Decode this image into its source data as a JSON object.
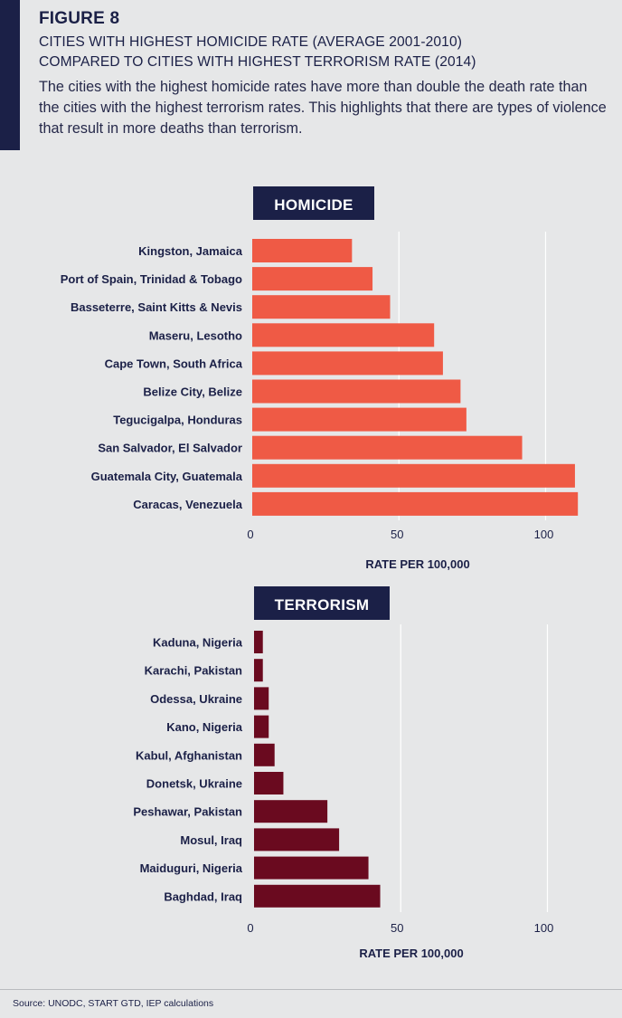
{
  "figure_label": "FIGURE 8",
  "title_line1": "CITIES WITH HIGHEST HOMICIDE RATE (AVERAGE 2001-2010)",
  "title_line2": "COMPARED TO CITIES WITH HIGHEST TERRORISM RATE (2014)",
  "description": "The cities with the highest homicide rates have more than double the death rate than the cities with the highest terrorism rates. This highlights that there are types of violence that result in more deaths than terrorism.",
  "source": "Source: UNODC, START GTD, IEP calculations",
  "chart_data": [
    {
      "type": "bar",
      "orientation": "horizontal",
      "title": "HOMICIDE",
      "xlabel": "RATE PER 100,000",
      "xlim": [
        0,
        115
      ],
      "xticks": [
        0,
        50,
        100
      ],
      "grid": true,
      "color": "#ef5a45",
      "categories": [
        "Kingston, Jamaica",
        "Port of Spain, Trinidad & Tobago",
        "Basseterre, Saint Kitts & Nevis",
        "Maseru, Lesotho",
        "Cape Town, South Africa",
        "Belize City, Belize",
        "Tegucigalpa, Honduras",
        "San Salvador, El Salvador",
        "Guatemala City, Guatemala",
        "Caracas, Venezuela"
      ],
      "values": [
        34,
        41,
        47,
        62,
        65,
        71,
        73,
        92,
        110,
        111
      ]
    },
    {
      "type": "bar",
      "orientation": "horizontal",
      "title": "TERRORISM",
      "xlabel": "RATE PER 100,000",
      "xlim": [
        0,
        115
      ],
      "xticks": [
        0,
        50,
        100
      ],
      "grid": true,
      "color": "#6a0a1f",
      "categories": [
        "Kaduna, Nigeria",
        "Karachi, Pakistan",
        "Odessa, Ukraine",
        "Kano, Nigeria",
        "Kabul, Afghanistan",
        "Donetsk, Ukraine",
        "Peshawar, Pakistan",
        "Mosul, Iraq",
        "Maiduguri, Nigeria",
        "Baghdad, Iraq"
      ],
      "values": [
        3,
        3,
        5,
        5,
        7,
        10,
        25,
        29,
        39,
        43
      ]
    }
  ]
}
